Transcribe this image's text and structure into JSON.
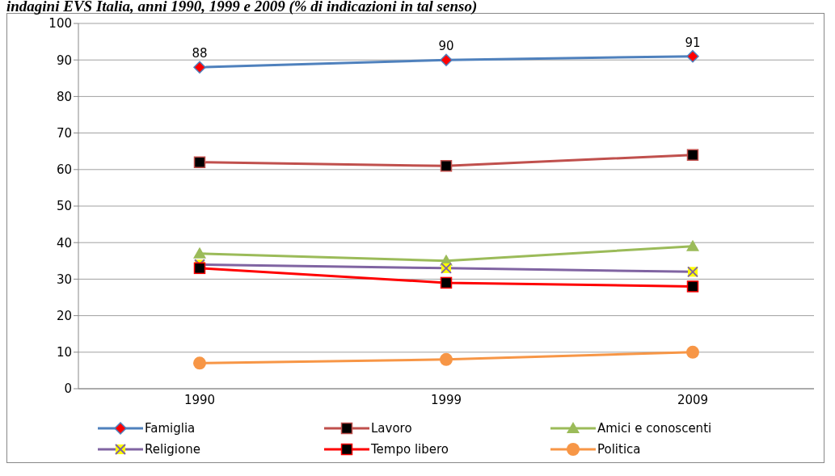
{
  "chart_data": {
    "type": "line",
    "title": "indagini EVS Italia, anni 1990, 1999 e 2009 (% di indicazioni in tal senso)",
    "categories": [
      "1990",
      "1999",
      "2009"
    ],
    "series": [
      {
        "name": "Famiglia",
        "color": "#4f81bd",
        "marker": "diamond",
        "values": [
          88,
          90,
          91
        ],
        "value_labels": [
          "88",
          "90",
          "91"
        ]
      },
      {
        "name": "Lavoro",
        "color": "#c0504d",
        "marker": "square",
        "values": [
          62,
          61,
          64
        ]
      },
      {
        "name": "Amici e conoscenti",
        "color": "#9bbb59",
        "marker": "triangle",
        "values": [
          37,
          35,
          39
        ]
      },
      {
        "name": "Religione",
        "color": "#8064a2",
        "marker": "cross",
        "values": [
          34,
          33,
          32
        ]
      },
      {
        "name": "Tempo libero",
        "color": "#ff0000",
        "marker": "square",
        "values": [
          33,
          29,
          28
        ]
      },
      {
        "name": "Politica",
        "color": "#f79646",
        "marker": "circle",
        "values": [
          7,
          8,
          10
        ]
      }
    ],
    "ylim": [
      0,
      100
    ],
    "yticks": [
      0,
      10,
      20,
      30,
      40,
      50,
      60,
      70,
      80,
      90,
      100
    ],
    "grid": "y",
    "legend": "bottom"
  }
}
